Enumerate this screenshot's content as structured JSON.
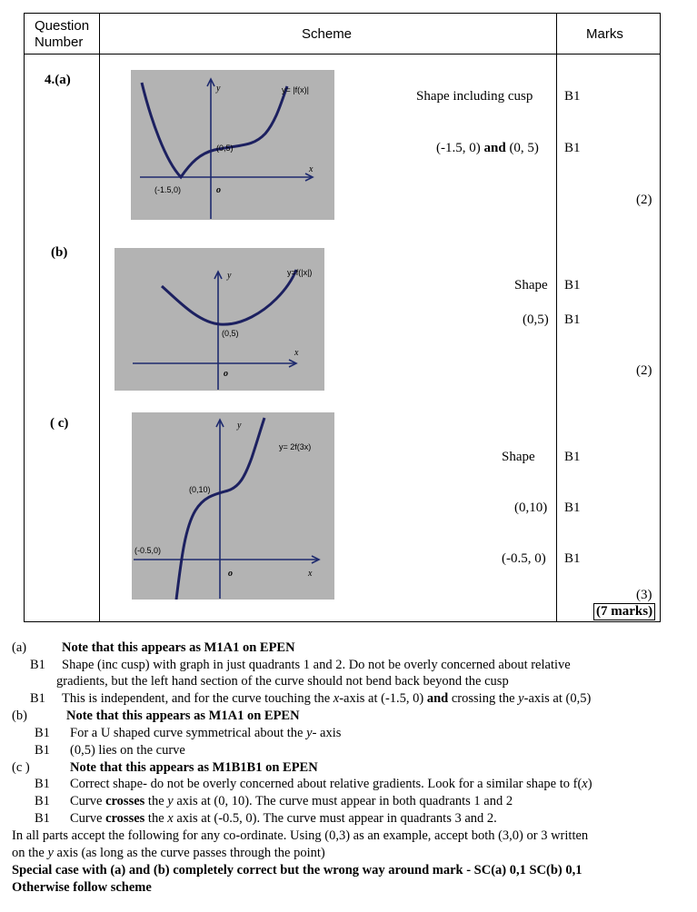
{
  "header": {
    "question_number": [
      "Question",
      "Number"
    ],
    "scheme": "Scheme",
    "marks": "Marks"
  },
  "parts": {
    "a": {
      "label": "4.(a)",
      "graph": {
        "y": "y",
        "x": "x",
        "o": "o",
        "func": "y= |f(x)|",
        "p1": "(0,5)",
        "p2": "(-1.5,0)"
      },
      "rows": [
        {
          "scheme": "Shape including cusp",
          "mark": "B1"
        },
        {
          "scheme_plain": "(-1.5, 0) ",
          "scheme_bold": "and",
          "scheme_tail": " (0, 5)",
          "mark": "B1"
        }
      ],
      "total": "(2)"
    },
    "b": {
      "label": "(b)",
      "graph": {
        "y": "y",
        "x": "x",
        "o": "o",
        "func": "y=f(|x|)",
        "p1": "(0,5)"
      },
      "rows": [
        {
          "scheme": "Shape",
          "mark": "B1"
        },
        {
          "scheme": "(0,5)",
          "mark": "B1"
        }
      ],
      "total": "(2)"
    },
    "c": {
      "label": "( c)",
      "graph": {
        "y": "y",
        "x": "x",
        "o": "o",
        "func": "y= 2f(3x)",
        "p1": "(0,10)",
        "p2": "(-0.5,0)"
      },
      "rows": [
        {
          "scheme": "Shape",
          "mark": "B1"
        },
        {
          "scheme": "(0,10)",
          "mark": "B1"
        },
        {
          "scheme": "(-0.5, 0)",
          "mark": "B1"
        }
      ],
      "total": "(3)",
      "grand_total": "(7 marks)"
    }
  },
  "notes": {
    "a_label": "(a)",
    "a_head": "Note that this appears as M1A1 on EPEN",
    "a_b1_code": "B1",
    "a_b1_text": "Shape (inc cusp) with graph in just quadrants 1 and 2. Do not be overly concerned about relative",
    "a_b1_cont": "gradients, but the left hand section of the curve should not bend back beyond the cusp",
    "a_b2_code": "B1",
    "a_b2_pre": "This is independent, and for the curve touching the ",
    "a_b2_x": "x",
    "a_b2_mid": "-axis at (-1.5, 0) ",
    "a_b2_and": "and",
    "a_b2_mid2": " crossing the ",
    "a_b2_y": "y",
    "a_b2_end": "-axis at (0,5)",
    "b_label": "(b)",
    "b_head": "Note that this appears as M1A1 on EPEN",
    "b_b1_code": "B1",
    "b_b1_pre": "For a U shaped curve symmetrical about the ",
    "b_b1_y": "y",
    "b_b1_end": "- axis",
    "b_b2_code": "B1",
    "b_b2_text": "(0,5) lies on the curve",
    "c_label": "(c )",
    "c_head": "Note that this appears as M1B1B1 on EPEN",
    "c_b1_code": "B1",
    "c_b1_pre": "Correct shape- do not be overly concerned about relative gradients. Look for a similar shape to f(",
    "c_b1_x": "x",
    "c_b1_end": ")",
    "c_b2_code": "B1",
    "c_b2_pre": "Curve ",
    "c_b2_bold": "crosses",
    "c_b2_mid": " the ",
    "c_b2_y": "y",
    "c_b2_end": " axis at (0, 10). The curve must appear in both quadrants 1 and 2",
    "c_b3_code": "B1",
    "c_b3_pre": "Curve ",
    "c_b3_bold": "crosses",
    "c_b3_mid": " the ",
    "c_b3_x": "x",
    "c_b3_end": " axis at (-0.5, 0). The curve must appear in quadrants 3 and 2.",
    "all_1": "In all parts accept the following for any co-ordinate. Using (0,3) as an example, accept both (3,0) or 3 written",
    "all_2_pre": "on the ",
    "all_2_y": "y",
    "all_2_end": " axis (as long as the curve passes through the point)",
    "special": "Special case with (a) and (b) completely correct but the wrong way around mark - SC(a) 0,1 SC(b) 0,1",
    "otherwise": "Otherwise follow scheme"
  }
}
